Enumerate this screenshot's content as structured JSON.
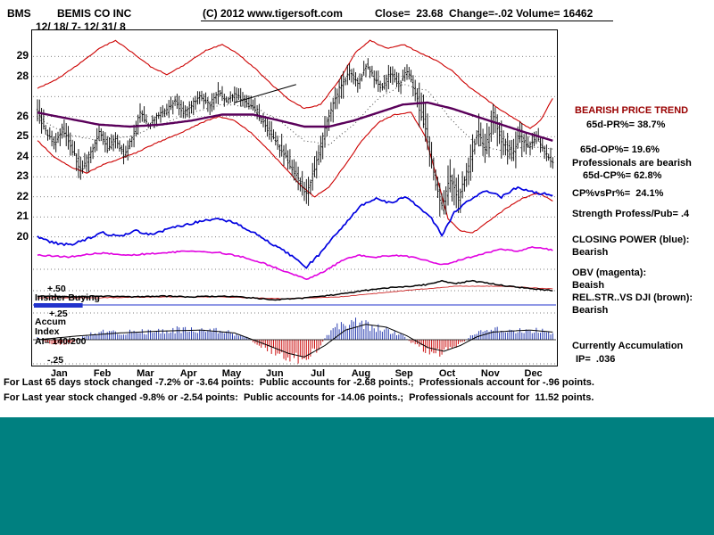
{
  "header": {
    "ticker": "BMS",
    "company": "BEMIS CO INC",
    "date_range": "12/ 18/ 7- 12/ 31/ 8",
    "copyright": "(C) 2012 www.tigersoft.com",
    "quote": "Close=  23.68  Change=-.02 Volume= 16462"
  },
  "analysis": {
    "trend_headline": "BEARISH PRICE TREND",
    "pr65": "65d-PR%= 38.7%",
    "op65": "65d-OP%= 19.6%",
    "prof_bearish": "Professionals are bearish",
    "cp65": "65d-CP%= 62.8%",
    "cp_vs_pr": "CP%vsPr%=  24.1%",
    "strength": "Strength Profess/Pub= .4",
    "cp_title": "CLOSING POWER (blue):",
    "cp_status": "Bearish",
    "obv_title": "OBV (magenta):",
    "obv_status": "Beaish",
    "rs_title": "REL.STR..VS DJI (brown):",
    "rs_status": "Bearish",
    "accum_title": "Currently Accumulation",
    "ip": "IP=  .036"
  },
  "footer": {
    "line1": "For Last 65 days stock changed -7.2% or -3.64 points:  Public accounts for -2.68 points.;  Professionals account for -.96 points.",
    "line2": "For Last year stock changed -9.8% or -2.54 points:  Public accounts for -14.06 points.;  Professionals account for  11.52 points."
  },
  "chart_data": {
    "type": "ohlc-with-indicators",
    "title": "BEMIS CO INC (BMS) daily price with bands, Closing Power, OBV, Rel.Strength and Accumulation Index",
    "x_axis": {
      "months": [
        "Jan",
        "Feb",
        "Mar",
        "Apr",
        "May",
        "Jun",
        "Jul",
        "Aug",
        "Sep",
        "Oct",
        "Nov",
        "Dec"
      ],
      "trading_days": 252
    },
    "y_axis": {
      "price_labels": [
        "29",
        "28",
        "26",
        "25",
        "24",
        "23",
        "22",
        "21",
        "20"
      ],
      "visible_price_range": [
        19.5,
        30.3
      ]
    },
    "panel_labels": {
      "plus50": "+.50",
      "insider": "Insider Buying",
      "plus25": "+.25",
      "accum1": "Accum",
      "accum2": "Index",
      "ai": "AI= 140/200",
      "minus25": "-.25"
    },
    "colors": {
      "band": "#cc0000",
      "ma_primary": "#5a005a",
      "ma_dotted": "#444444",
      "closing_power": "#0000e0",
      "obv": "#e000e0",
      "rel_strength": "#000000",
      "rel_strength_ma": "#cc2222",
      "accum_pos": "#2b3fb0",
      "accum_neg": "#cc1111",
      "insider_line": "#2233cc",
      "grid": "#555555",
      "headline": "#990000",
      "footer_teal": "#008080"
    },
    "series": {
      "close": [
        [
          0,
          26.3
        ],
        [
          4,
          25.2
        ],
        [
          8,
          24.6
        ],
        [
          12,
          25.4
        ],
        [
          16,
          24.6
        ],
        [
          21,
          23.3
        ],
        [
          25,
          24.0
        ],
        [
          30,
          25.2
        ],
        [
          34,
          24.4
        ],
        [
          38,
          24.9
        ],
        [
          42,
          24.1
        ],
        [
          46,
          24.9
        ],
        [
          50,
          26.2
        ],
        [
          54,
          25.5
        ],
        [
          58,
          26.0
        ],
        [
          63,
          26.3
        ],
        [
          67,
          26.8
        ],
        [
          71,
          26.2
        ],
        [
          75,
          26.6
        ],
        [
          79,
          27.0
        ],
        [
          84,
          26.6
        ],
        [
          88,
          27.2
        ],
        [
          92,
          26.8
        ],
        [
          96,
          27.1
        ],
        [
          100,
          26.8
        ],
        [
          105,
          26.4
        ],
        [
          110,
          25.7
        ],
        [
          115,
          24.9
        ],
        [
          120,
          24.1
        ],
        [
          126,
          23.1
        ],
        [
          131,
          22.2
        ],
        [
          136,
          23.8
        ],
        [
          141,
          25.8
        ],
        [
          147,
          27.4
        ],
        [
          152,
          28.2
        ],
        [
          156,
          27.6
        ],
        [
          160,
          28.6
        ],
        [
          164,
          27.9
        ],
        [
          168,
          27.4
        ],
        [
          172,
          28.2
        ],
        [
          176,
          27.6
        ],
        [
          180,
          28.3
        ],
        [
          184,
          27.2
        ],
        [
          189,
          25.4
        ],
        [
          193,
          23.2
        ],
        [
          197,
          21.4
        ],
        [
          201,
          22.9
        ],
        [
          205,
          21.9
        ],
        [
          210,
          23.4
        ],
        [
          214,
          25.2
        ],
        [
          218,
          24.3
        ],
        [
          222,
          26.1
        ],
        [
          226,
          24.9
        ],
        [
          231,
          24.1
        ],
        [
          235,
          25.1
        ],
        [
          239,
          24.5
        ],
        [
          243,
          25.0
        ],
        [
          247,
          24.2
        ],
        [
          251,
          23.68
        ]
      ],
      "band_upper": [
        [
          0,
          27.4
        ],
        [
          10,
          27.9
        ],
        [
          20,
          28.6
        ],
        [
          30,
          29.4
        ],
        [
          38,
          29.8
        ],
        [
          46,
          29.2
        ],
        [
          55,
          28.5
        ],
        [
          63,
          28.1
        ],
        [
          72,
          28.6
        ],
        [
          82,
          29.3
        ],
        [
          90,
          29.6
        ],
        [
          98,
          29.1
        ],
        [
          106,
          28.4
        ],
        [
          114,
          27.6
        ],
        [
          122,
          26.9
        ],
        [
          130,
          26.4
        ],
        [
          138,
          26.6
        ],
        [
          147,
          27.8
        ],
        [
          155,
          29.2
        ],
        [
          162,
          29.8
        ],
        [
          170,
          29.4
        ],
        [
          178,
          29.6
        ],
        [
          186,
          29.2
        ],
        [
          194,
          28.8
        ],
        [
          202,
          28.3
        ],
        [
          210,
          27.5
        ],
        [
          218,
          26.9
        ],
        [
          226,
          26.3
        ],
        [
          234,
          25.8
        ],
        [
          240,
          25.4
        ],
        [
          245,
          25.8
        ],
        [
          251,
          26.9
        ]
      ],
      "band_lower": [
        [
          0,
          24.8
        ],
        [
          8,
          24.0
        ],
        [
          16,
          23.5
        ],
        [
          24,
          23.2
        ],
        [
          32,
          23.6
        ],
        [
          40,
          23.9
        ],
        [
          48,
          24.2
        ],
        [
          56,
          24.6
        ],
        [
          63,
          24.9
        ],
        [
          72,
          25.3
        ],
        [
          80,
          25.7
        ],
        [
          88,
          26.0
        ],
        [
          96,
          25.8
        ],
        [
          104,
          25.2
        ],
        [
          112,
          24.4
        ],
        [
          120,
          23.5
        ],
        [
          128,
          22.6
        ],
        [
          135,
          22.0
        ],
        [
          142,
          22.5
        ],
        [
          150,
          23.6
        ],
        [
          158,
          24.8
        ],
        [
          166,
          25.7
        ],
        [
          174,
          26.1
        ],
        [
          182,
          26.2
        ],
        [
          189,
          25.0
        ],
        [
          195,
          22.8
        ],
        [
          200,
          20.9
        ],
        [
          206,
          20.3
        ],
        [
          212,
          20.2
        ],
        [
          220,
          20.8
        ],
        [
          228,
          21.4
        ],
        [
          236,
          21.9
        ],
        [
          244,
          22.2
        ],
        [
          251,
          21.8
        ]
      ],
      "ma_primary": [
        [
          0,
          26.2
        ],
        [
          15,
          25.9
        ],
        [
          30,
          25.6
        ],
        [
          45,
          25.5
        ],
        [
          60,
          25.6
        ],
        [
          75,
          25.8
        ],
        [
          90,
          26.1
        ],
        [
          105,
          26.1
        ],
        [
          118,
          25.8
        ],
        [
          130,
          25.5
        ],
        [
          142,
          25.5
        ],
        [
          154,
          25.8
        ],
        [
          166,
          26.2
        ],
        [
          178,
          26.6
        ],
        [
          190,
          26.7
        ],
        [
          202,
          26.4
        ],
        [
          214,
          26.0
        ],
        [
          226,
          25.6
        ],
        [
          238,
          25.2
        ],
        [
          251,
          24.8
        ]
      ],
      "ma_dotted": [
        [
          0,
          25.9
        ],
        [
          15,
          25.1
        ],
        [
          30,
          24.8
        ],
        [
          45,
          25.0
        ],
        [
          60,
          25.6
        ],
        [
          75,
          26.2
        ],
        [
          90,
          26.6
        ],
        [
          105,
          26.5
        ],
        [
          118,
          25.8
        ],
        [
          130,
          24.8
        ],
        [
          142,
          24.6
        ],
        [
          154,
          25.6
        ],
        [
          166,
          26.9
        ],
        [
          178,
          27.6
        ],
        [
          190,
          27.3
        ],
        [
          202,
          25.8
        ],
        [
          214,
          24.6
        ],
        [
          226,
          24.3
        ],
        [
          238,
          24.5
        ],
        [
          251,
          24.4
        ]
      ],
      "closing_power": [
        [
          0,
          20.0
        ],
        [
          8,
          19.7
        ],
        [
          16,
          19.6
        ],
        [
          24,
          19.9
        ],
        [
          32,
          20.2
        ],
        [
          40,
          20.0
        ],
        [
          48,
          20.3
        ],
        [
          56,
          20.1
        ],
        [
          63,
          20.4
        ],
        [
          72,
          20.6
        ],
        [
          80,
          20.8
        ],
        [
          88,
          20.9
        ],
        [
          96,
          20.7
        ],
        [
          104,
          20.3
        ],
        [
          112,
          19.8
        ],
        [
          120,
          19.3
        ],
        [
          126,
          18.9
        ],
        [
          131,
          18.5
        ],
        [
          138,
          19.2
        ],
        [
          145,
          20.1
        ],
        [
          152,
          20.9
        ],
        [
          158,
          21.6
        ],
        [
          165,
          21.9
        ],
        [
          172,
          21.7
        ],
        [
          179,
          22.0
        ],
        [
          186,
          21.5
        ],
        [
          192,
          20.9
        ],
        [
          197,
          20.1
        ],
        [
          203,
          21.2
        ],
        [
          210,
          21.8
        ],
        [
          218,
          22.3
        ],
        [
          226,
          22.0
        ],
        [
          234,
          22.5
        ],
        [
          242,
          22.2
        ],
        [
          251,
          22.1
        ]
      ],
      "obv": [
        [
          0,
          19.1
        ],
        [
          15,
          19.0
        ],
        [
          30,
          19.2
        ],
        [
          45,
          19.1
        ],
        [
          60,
          19.2
        ],
        [
          75,
          19.3
        ],
        [
          90,
          19.2
        ],
        [
          100,
          19.0
        ],
        [
          110,
          18.7
        ],
        [
          120,
          18.3
        ],
        [
          131,
          17.9
        ],
        [
          140,
          18.3
        ],
        [
          148,
          18.8
        ],
        [
          156,
          19.1
        ],
        [
          165,
          19.0
        ],
        [
          174,
          19.1
        ],
        [
          182,
          19.0
        ],
        [
          190,
          18.8
        ],
        [
          197,
          18.6
        ],
        [
          204,
          18.8
        ],
        [
          211,
          19.0
        ],
        [
          218,
          19.2
        ],
        [
          226,
          19.4
        ],
        [
          234,
          19.3
        ],
        [
          242,
          19.5
        ],
        [
          251,
          19.35
        ]
      ],
      "rel_strength": [
        [
          0,
          0.44
        ],
        [
          15,
          0.43
        ],
        [
          30,
          0.44
        ],
        [
          45,
          0.43
        ],
        [
          60,
          0.44
        ],
        [
          75,
          0.43
        ],
        [
          90,
          0.44
        ],
        [
          105,
          0.42
        ],
        [
          115,
          0.4
        ],
        [
          126,
          0.41
        ],
        [
          135,
          0.43
        ],
        [
          147,
          0.46
        ],
        [
          156,
          0.49
        ],
        [
          165,
          0.52
        ],
        [
          174,
          0.54
        ],
        [
          183,
          0.55
        ],
        [
          190,
          0.57
        ],
        [
          197,
          0.61
        ],
        [
          204,
          0.58
        ],
        [
          211,
          0.61
        ],
        [
          218,
          0.59
        ],
        [
          226,
          0.56
        ],
        [
          234,
          0.54
        ],
        [
          242,
          0.52
        ],
        [
          251,
          0.5
        ]
      ],
      "rel_strength_ma": [
        [
          0,
          0.42
        ],
        [
          30,
          0.42
        ],
        [
          60,
          0.43
        ],
        [
          90,
          0.43
        ],
        [
          120,
          0.41
        ],
        [
          147,
          0.43
        ],
        [
          165,
          0.47
        ],
        [
          183,
          0.51
        ],
        [
          204,
          0.55
        ],
        [
          226,
          0.55
        ],
        [
          251,
          0.52
        ]
      ],
      "accum_index": [
        [
          0,
          0.03
        ],
        [
          5,
          -0.05
        ],
        [
          12,
          -0.06
        ],
        [
          18,
          -0.03
        ],
        [
          24,
          0.07
        ],
        [
          32,
          0.11
        ],
        [
          40,
          0.09
        ],
        [
          48,
          0.13
        ],
        [
          56,
          0.11
        ],
        [
          63,
          0.13
        ],
        [
          72,
          0.15
        ],
        [
          80,
          0.12
        ],
        [
          88,
          0.14
        ],
        [
          96,
          0.09
        ],
        [
          102,
          0.03
        ],
        [
          108,
          -0.08
        ],
        [
          114,
          -0.16
        ],
        [
          120,
          -0.21
        ],
        [
          126,
          -0.26
        ],
        [
          132,
          -0.23
        ],
        [
          137,
          -0.12
        ],
        [
          141,
          0.08
        ],
        [
          147,
          0.2
        ],
        [
          153,
          0.24
        ],
        [
          159,
          0.22
        ],
        [
          165,
          0.18
        ],
        [
          171,
          0.13
        ],
        [
          177,
          0.08
        ],
        [
          182,
          -0.04
        ],
        [
          187,
          -0.12
        ],
        [
          192,
          -0.17
        ],
        [
          197,
          -0.2
        ],
        [
          202,
          -0.12
        ],
        [
          207,
          -0.04
        ],
        [
          212,
          0.07
        ],
        [
          218,
          0.12
        ],
        [
          224,
          0.14
        ],
        [
          230,
          0.11
        ],
        [
          236,
          0.13
        ],
        [
          242,
          0.14
        ],
        [
          247,
          0.11
        ],
        [
          251,
          0.09
        ]
      ],
      "accum_ma": [
        [
          0,
          0.0
        ],
        [
          20,
          0.04
        ],
        [
          40,
          0.07
        ],
        [
          60,
          0.09
        ],
        [
          80,
          0.1
        ],
        [
          96,
          0.07
        ],
        [
          110,
          -0.04
        ],
        [
          122,
          -0.14
        ],
        [
          130,
          -0.18
        ],
        [
          140,
          -0.06
        ],
        [
          150,
          0.1
        ],
        [
          160,
          0.16
        ],
        [
          170,
          0.13
        ],
        [
          180,
          0.04
        ],
        [
          190,
          -0.08
        ],
        [
          198,
          -0.12
        ],
        [
          206,
          -0.06
        ],
        [
          214,
          0.03
        ],
        [
          222,
          0.08
        ],
        [
          230,
          0.09
        ],
        [
          240,
          0.1
        ],
        [
          251,
          0.08
        ]
      ],
      "trendline": {
        "from": [
          96,
          26.7
        ],
        "to": [
          126,
          27.6
        ]
      },
      "insider_buying_bar": {
        "from_day": 0,
        "to_day": 22
      }
    }
  }
}
